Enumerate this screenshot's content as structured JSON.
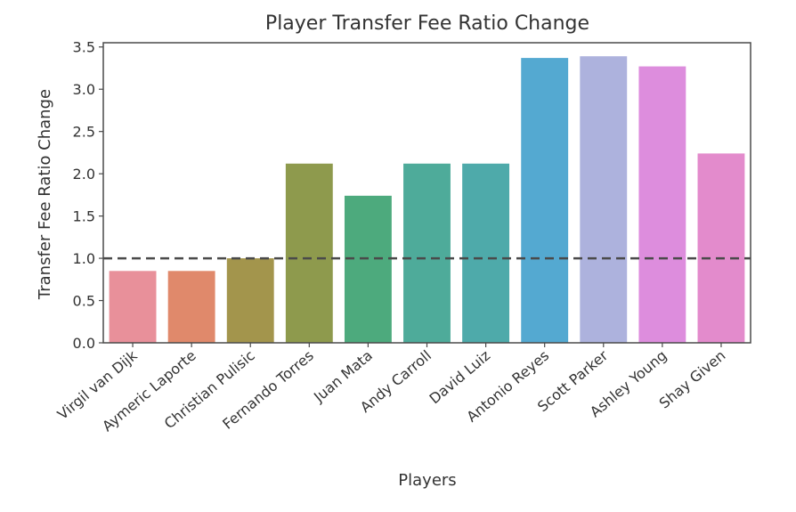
{
  "chart_data": {
    "type": "bar",
    "title": "Player Transfer Fee Ratio Change",
    "xlabel": "Players",
    "ylabel": "Transfer Fee Ratio Change",
    "ylim": [
      0,
      3.55
    ],
    "yticks": [
      "0.0",
      "0.5",
      "1.0",
      "1.5",
      "2.0",
      "2.5",
      "3.0",
      "3.5"
    ],
    "ytick_values": [
      0,
      0.5,
      1.0,
      1.5,
      2.0,
      2.5,
      3.0,
      3.5
    ],
    "reference_line": 1.0,
    "categories": [
      "Virgil van Dijk",
      "Aymeric Laporte",
      "Christian Pulisic",
      "Fernando Torres",
      "Juan Mata",
      "Andy Carroll",
      "David Luiz",
      "Antonio Reyes",
      "Scott Parker",
      "Ashley Young",
      "Shay Given"
    ],
    "values": [
      0.85,
      0.85,
      1.0,
      2.12,
      1.74,
      2.12,
      2.12,
      3.37,
      3.39,
      3.27,
      2.24
    ],
    "colors": [
      "#e8909a",
      "#e0896b",
      "#a3954c",
      "#8e9a4d",
      "#4daa7d",
      "#4eab9a",
      "#4eaaaa",
      "#54a9d1",
      "#adb2dd",
      "#dd8ddd",
      "#e38bcc"
    ]
  }
}
